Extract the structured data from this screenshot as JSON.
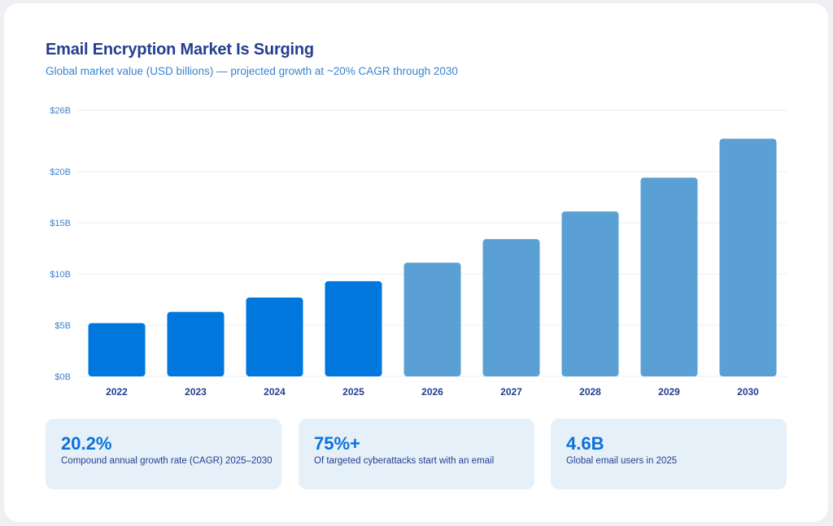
{
  "header": {
    "title": "Email Encryption Market Is Surging",
    "subtitle": "Global market value (USD billions) — projected growth at ~20% CAGR through 2030"
  },
  "chart_data": {
    "type": "bar",
    "categories": [
      "2022",
      "2023",
      "2024",
      "2025",
      "2026",
      "2027",
      "2028",
      "2029",
      "2030"
    ],
    "values": [
      5.2,
      6.3,
      7.7,
      9.3,
      11.1,
      13.4,
      16.1,
      19.4,
      23.2
    ],
    "ylim": [
      0,
      26
    ],
    "yticks": [
      0,
      5,
      10,
      15,
      20,
      26
    ],
    "ytick_labels": [
      "$0B",
      "$5B",
      "$10B",
      "$15B",
      "$20B",
      "$26B"
    ],
    "grid": true,
    "colors": {
      "actual": "#0077dd",
      "projected": "#5ba0d4"
    },
    "projected_from": "2026"
  },
  "stats": [
    {
      "value": "20.2%",
      "label": "Compound annual growth rate (CAGR) 2025–2030"
    },
    {
      "value": "75%+",
      "label": "Of targeted cyberattacks start with an email"
    },
    {
      "value": "4.6B",
      "label": "Global email users in 2025"
    }
  ]
}
